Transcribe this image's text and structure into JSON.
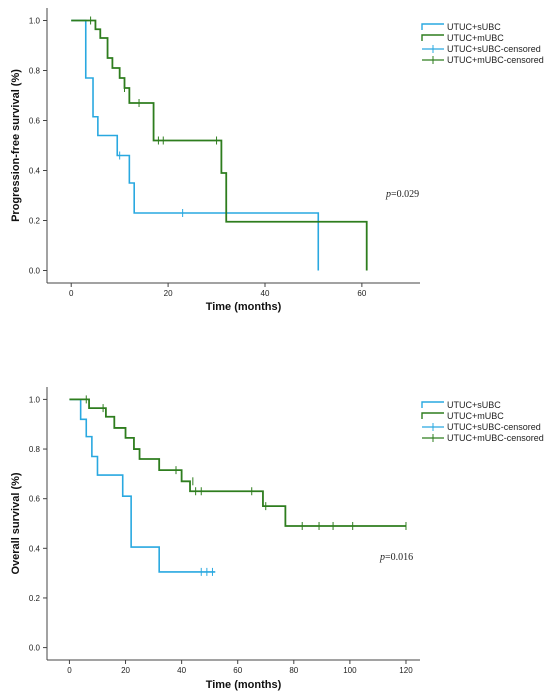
{
  "colors": {
    "sUBC": "#29a8e0",
    "mUBC": "#2e7d1e",
    "axis": "#444444"
  },
  "legend_labels": [
    "UTUC+sUBC",
    "UTUC+mUBC",
    "UTUC+sUBC-censored",
    "UTUC+mUBC-censored"
  ],
  "chart_data": [
    {
      "type": "line",
      "subtype": "kaplan-meier",
      "xlabel": "Time (months)",
      "ylabel": "Progression-free survival (%)",
      "xlim": [
        -5,
        72
      ],
      "ylim": [
        -0.05,
        1.05
      ],
      "xticks": [
        0,
        20,
        40,
        60
      ],
      "yticks": [
        0.0,
        0.2,
        0.4,
        0.6,
        0.8,
        1.0
      ],
      "ytick_labels": [
        "0.0",
        "0.2",
        "0.4",
        "0.6",
        "0.8",
        "1.0"
      ],
      "xtick_labels": [
        "0",
        "20",
        "40",
        "60"
      ],
      "annotation": {
        "p_label": "p",
        "p_value": "=0.029"
      },
      "legend_position": "top-right",
      "series": [
        {
          "name": "UTUC+sUBC",
          "color_key": "sUBC",
          "steps": [
            [
              0,
              1.0
            ],
            [
              3,
              0.77
            ],
            [
              4.5,
              0.615
            ],
            [
              5.5,
              0.54
            ],
            [
              9.5,
              0.46
            ],
            [
              12,
              0.35
            ],
            [
              13,
              0.23
            ],
            [
              51,
              0.0
            ]
          ],
          "end_x": 51,
          "censored": [
            [
              10,
              0.46
            ],
            [
              23,
              0.23
            ]
          ]
        },
        {
          "name": "UTUC+mUBC",
          "color_key": "mUBC",
          "steps": [
            [
              0,
              1.0
            ],
            [
              5,
              0.965
            ],
            [
              6,
              0.93
            ],
            [
              7.5,
              0.85
            ],
            [
              8.5,
              0.81
            ],
            [
              10,
              0.77
            ],
            [
              11,
              0.73
            ],
            [
              12,
              0.67
            ],
            [
              17,
              0.52
            ],
            [
              31,
              0.39
            ],
            [
              32,
              0.195
            ],
            [
              61,
              0.0
            ]
          ],
          "end_x": 61,
          "censored": [
            [
              4,
              1.0
            ],
            [
              11,
              0.73
            ],
            [
              14,
              0.67
            ],
            [
              18,
              0.52
            ],
            [
              19,
              0.52
            ],
            [
              30,
              0.52
            ]
          ]
        }
      ]
    },
    {
      "type": "line",
      "subtype": "kaplan-meier",
      "xlabel": "Time (months)",
      "ylabel": "Overall survival (%)",
      "xlim": [
        -8,
        125
      ],
      "ylim": [
        -0.05,
        1.05
      ],
      "xticks": [
        0,
        20,
        40,
        60,
        80,
        100,
        120
      ],
      "yticks": [
        0.0,
        0.2,
        0.4,
        0.6,
        0.8,
        1.0
      ],
      "ytick_labels": [
        "0.0",
        "0.2",
        "0.4",
        "0.6",
        "0.8",
        "1.0"
      ],
      "xtick_labels": [
        "0",
        "20",
        "40",
        "60",
        "80",
        "100",
        "120"
      ],
      "annotation": {
        "p_label": "p",
        "p_value": "=0.016"
      },
      "legend_position": "top-right",
      "series": [
        {
          "name": "UTUC+sUBC",
          "color_key": "sUBC",
          "steps": [
            [
              0,
              1.0
            ],
            [
              4,
              0.92
            ],
            [
              6,
              0.85
            ],
            [
              8,
              0.77
            ],
            [
              10,
              0.695
            ],
            [
              19,
              0.61
            ],
            [
              22,
              0.405
            ],
            [
              32,
              0.305
            ]
          ],
          "end_x": 52,
          "censored": [
            [
              47,
              0.305
            ],
            [
              49,
              0.305
            ],
            [
              51,
              0.305
            ]
          ]
        },
        {
          "name": "UTUC+mUBC",
          "color_key": "mUBC",
          "steps": [
            [
              0,
              1.0
            ],
            [
              7,
              0.965
            ],
            [
              13,
              0.93
            ],
            [
              16,
              0.885
            ],
            [
              20,
              0.845
            ],
            [
              23,
              0.8
            ],
            [
              25,
              0.76
            ],
            [
              32,
              0.715
            ],
            [
              40,
              0.67
            ],
            [
              43,
              0.63
            ],
            [
              69,
              0.57
            ],
            [
              77,
              0.49
            ]
          ],
          "end_x": 120,
          "censored": [
            [
              6,
              1.0
            ],
            [
              12,
              0.965
            ],
            [
              38,
              0.715
            ],
            [
              44,
              0.67
            ],
            [
              45,
              0.63
            ],
            [
              47,
              0.63
            ],
            [
              65,
              0.63
            ],
            [
              70,
              0.57
            ],
            [
              83,
              0.49
            ],
            [
              89,
              0.49
            ],
            [
              94,
              0.49
            ],
            [
              101,
              0.49
            ],
            [
              120,
              0.49
            ]
          ]
        }
      ]
    }
  ]
}
